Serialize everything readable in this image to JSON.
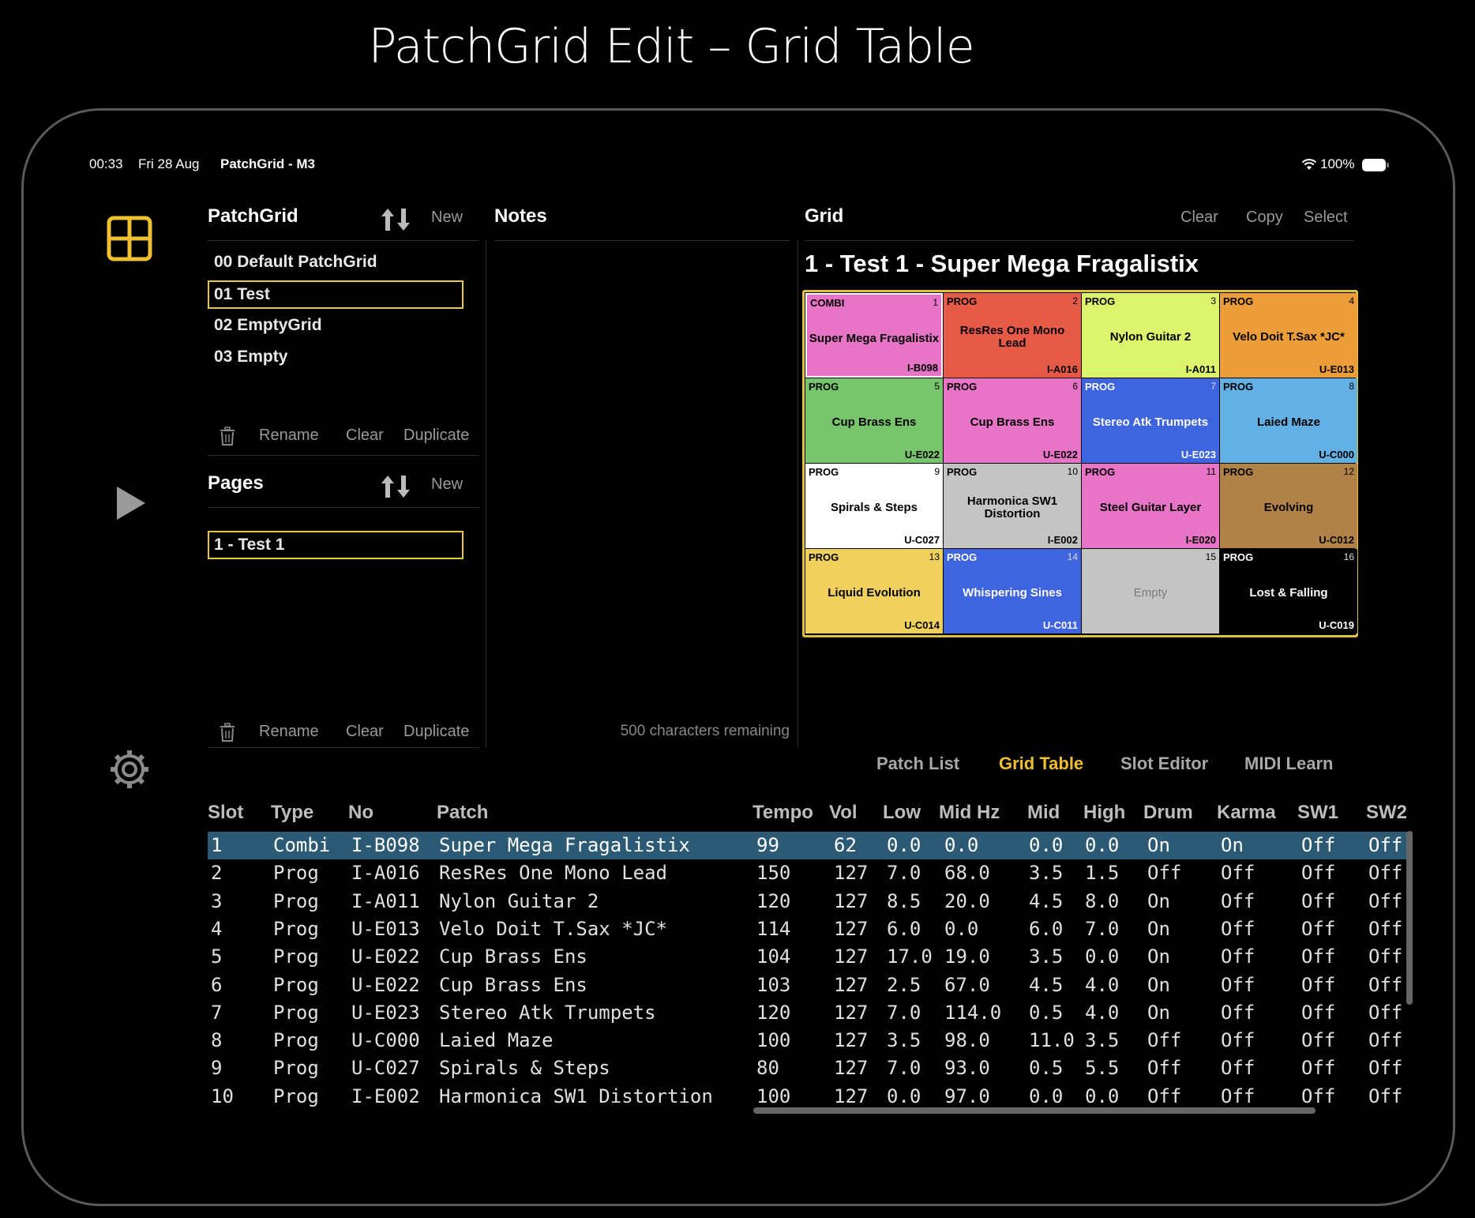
{
  "headline": "PatchGrid Edit – Grid Table",
  "status": {
    "time": "00:33",
    "date": "Fri 28 Aug",
    "app_title": "PatchGrid - M3",
    "battery": "100%"
  },
  "patchgrid": {
    "title": "PatchGrid",
    "new_label": "New",
    "items": [
      "00  Default PatchGrid",
      "01  Test",
      "02  EmptyGrid",
      "03  Empty"
    ],
    "selected": 1,
    "rename": "Rename",
    "clear": "Clear",
    "duplicate": "Duplicate"
  },
  "pages": {
    "title": "Pages",
    "new_label": "New",
    "items": [
      "1 - Test 1"
    ],
    "rename": "Rename",
    "clear": "Clear",
    "duplicate": "Duplicate"
  },
  "notes": {
    "title": "Notes",
    "remaining": "500 characters remaining"
  },
  "grid": {
    "title": "Grid",
    "clear": "Clear",
    "copy": "Copy",
    "select": "Select",
    "page_title": "1 - Test 1 - Super Mega Fragalistix",
    "cells": [
      {
        "type": "COMBI",
        "num": "1",
        "name": "Super Mega Fragalistix",
        "patch": "I-B098",
        "color": "#e874c8"
      },
      {
        "type": "PROG",
        "num": "2",
        "name": "ResRes One Mono Lead",
        "patch": "I-A016",
        "color": "#e65a48"
      },
      {
        "type": "PROG",
        "num": "3",
        "name": "Nylon Guitar 2",
        "patch": "I-A011",
        "color": "#dcf46c"
      },
      {
        "type": "PROG",
        "num": "4",
        "name": "Velo Doit T.Sax *JC*",
        "patch": "U-E013",
        "color": "#ec9c38"
      },
      {
        "type": "PROG",
        "num": "5",
        "name": "Cup Brass Ens",
        "patch": "U-E022",
        "color": "#78c46c"
      },
      {
        "type": "PROG",
        "num": "6",
        "name": "Cup Brass Ens",
        "patch": "U-E022",
        "color": "#e874c8"
      },
      {
        "type": "PROG",
        "num": "7",
        "name": "Stereo Atk Trumpets",
        "patch": "U-E023",
        "color": "#3e64e0",
        "light": true
      },
      {
        "type": "PROG",
        "num": "8",
        "name": "Laied Maze",
        "patch": "U-C000",
        "color": "#62b0e4"
      },
      {
        "type": "PROG",
        "num": "9",
        "name": "Spirals & Steps",
        "patch": "U-C027",
        "color": "#ffffff"
      },
      {
        "type": "PROG",
        "num": "10",
        "name": "Harmonica SW1 Distortion",
        "patch": "I-E002",
        "color": "#c4c4c4"
      },
      {
        "type": "PROG",
        "num": "11",
        "name": "Steel Guitar Layer",
        "patch": "I-E020",
        "color": "#e874c8"
      },
      {
        "type": "PROG",
        "num": "12",
        "name": "Evolving",
        "patch": "U-C012",
        "color": "#b08248"
      },
      {
        "type": "PROG",
        "num": "13",
        "name": "Liquid Evolution",
        "patch": "U-C014",
        "color": "#f0d05c"
      },
      {
        "type": "PROG",
        "num": "14",
        "name": "Whispering Sines",
        "patch": "U-C011",
        "color": "#3e64e0",
        "light": true
      },
      {
        "type": "",
        "num": "15",
        "name": "Empty",
        "patch": "",
        "color": "#c4c4c4",
        "muted": true
      },
      {
        "type": "PROG",
        "num": "16",
        "name": "Lost & Falling",
        "patch": "U-C019",
        "color": "#000000",
        "light": true
      }
    ]
  },
  "tabs": [
    "Patch List",
    "Grid Table",
    "Slot Editor",
    "MIDI Learn"
  ],
  "active_tab": 1,
  "table": {
    "headers": [
      "Slot",
      "Type",
      "No",
      "Patch",
      "Tempo",
      "Vol",
      "Low",
      "Mid Hz",
      "Mid",
      "High",
      "Drum",
      "Karma",
      "SW1",
      "SW2"
    ],
    "rows": [
      [
        "1",
        "Combi",
        "I-B098",
        "Super Mega Fragalistix",
        "99",
        "62",
        "0.0",
        "0.0",
        "0.0",
        "0.0",
        "On",
        "On",
        "Off",
        "Off"
      ],
      [
        "2",
        "Prog",
        "I-A016",
        "ResRes One Mono Lead",
        "150",
        "127",
        "7.0",
        "68.0",
        "3.5",
        "1.5",
        "Off",
        "Off",
        "Off",
        "Off"
      ],
      [
        "3",
        "Prog",
        "I-A011",
        "Nylon Guitar 2",
        "120",
        "127",
        "8.5",
        "20.0",
        "4.5",
        "8.0",
        "On",
        "Off",
        "Off",
        "Off"
      ],
      [
        "4",
        "Prog",
        "U-E013",
        "Velo Doit T.Sax *JC*",
        "114",
        "127",
        "6.0",
        "0.0",
        "6.0",
        "7.0",
        "On",
        "Off",
        "Off",
        "Off"
      ],
      [
        "5",
        "Prog",
        "U-E022",
        "Cup Brass Ens",
        "104",
        "127",
        "17.0",
        "19.0",
        "3.5",
        "0.0",
        "On",
        "Off",
        "Off",
        "Off"
      ],
      [
        "6",
        "Prog",
        "U-E022",
        "Cup Brass Ens",
        "103",
        "127",
        "2.5",
        "67.0",
        "4.5",
        "4.0",
        "On",
        "Off",
        "Off",
        "Off"
      ],
      [
        "7",
        "Prog",
        "U-E023",
        "Stereo Atk Trumpets",
        "120",
        "127",
        "7.0",
        "114.0",
        "0.5",
        "4.0",
        "On",
        "Off",
        "Off",
        "Off"
      ],
      [
        "8",
        "Prog",
        "U-C000",
        "Laied Maze",
        "100",
        "127",
        "3.5",
        "98.0",
        "11.0",
        "3.5",
        "Off",
        "Off",
        "Off",
        "Off"
      ],
      [
        "9",
        "Prog",
        "U-C027",
        "Spirals & Steps",
        "80",
        "127",
        "7.0",
        "93.0",
        "0.5",
        "5.5",
        "Off",
        "Off",
        "Off",
        "Off"
      ],
      [
        "10",
        "Prog",
        "I-E002",
        "Harmonica SW1 Distortion",
        "100",
        "127",
        "0.0",
        "97.0",
        "0.0",
        "0.0",
        "Off",
        "Off",
        "Off",
        "Off"
      ]
    ],
    "selected_row": 0
  },
  "colors": {
    "accent": "#f0c030",
    "selection": "#2c5a74"
  },
  "icons": {
    "grid": "grid-icon",
    "play": "play-icon",
    "settings": "gear-icon",
    "sort": "sort-arrows-icon",
    "trash": "trash-icon",
    "wifi": "wifi-icon",
    "battery": "battery-icon"
  }
}
